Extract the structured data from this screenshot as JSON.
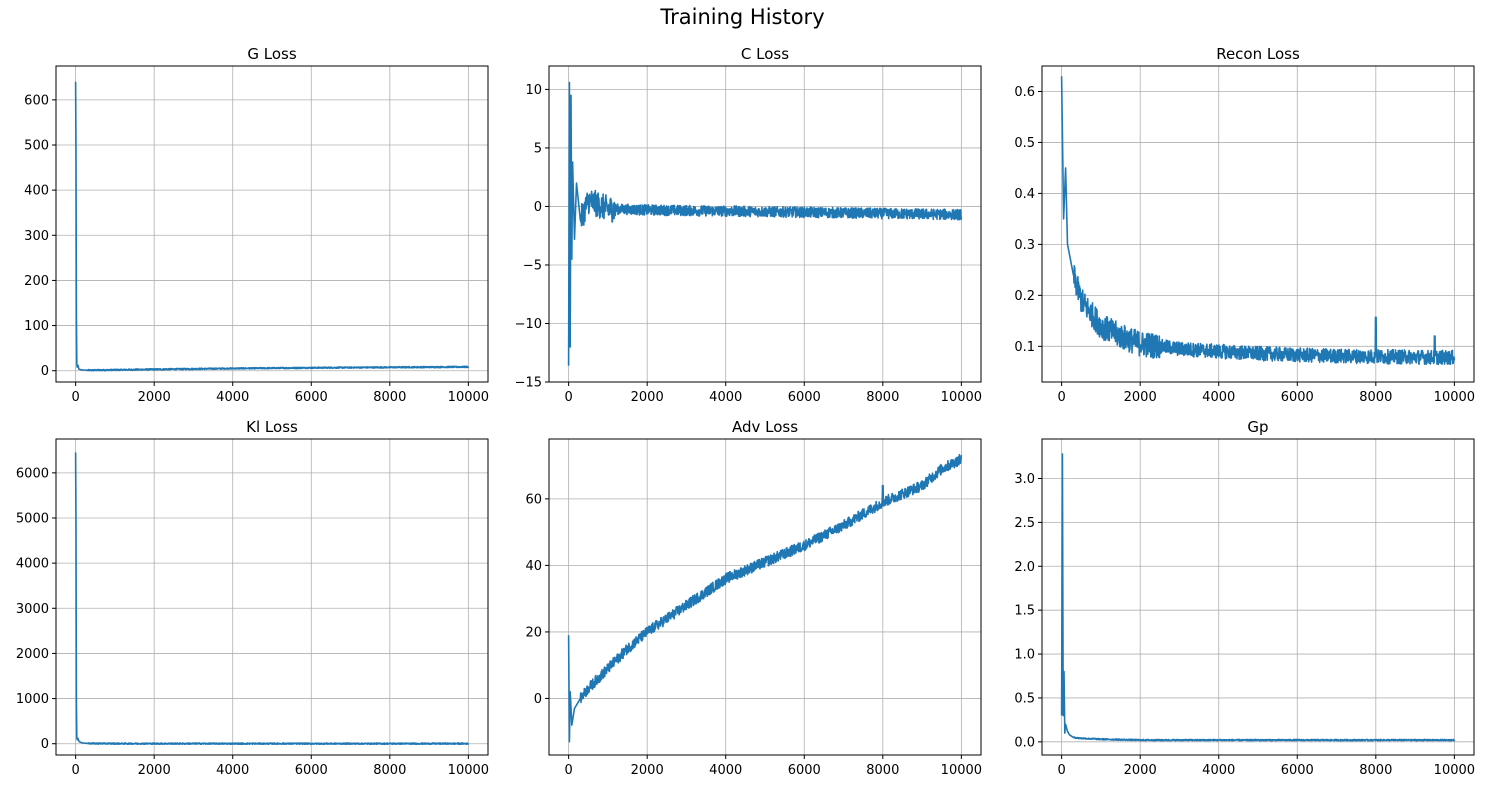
{
  "figure": {
    "title": "Training History",
    "line_color": "#1f77b4",
    "grid_color": "#b0b0b0"
  },
  "chart_data": [
    {
      "type": "line",
      "title": "G Loss",
      "xlim": [
        -500,
        10500
      ],
      "ylim": [
        -25,
        675
      ],
      "xticks": [
        0,
        2000,
        4000,
        6000,
        8000,
        10000
      ],
      "yticks": [
        0,
        100,
        200,
        300,
        400,
        500,
        600
      ],
      "ytick_labels": [
        "0",
        "100",
        "200",
        "300",
        "400",
        "500",
        "600"
      ],
      "grid": true,
      "shape": "spike_flat",
      "x": [
        0,
        10,
        20,
        30,
        40,
        60,
        80,
        100,
        150,
        200,
        300,
        500,
        1000,
        2000,
        4000,
        6000,
        8000,
        10000
      ],
      "y": [
        640,
        480,
        120,
        15,
        8,
        12,
        4,
        3,
        2,
        1.5,
        1.0,
        1.2,
        1.8,
        3.0,
        5.0,
        6.5,
        7.5,
        8.5
      ]
    },
    {
      "type": "line",
      "title": "C Loss",
      "xlim": [
        -500,
        10500
      ],
      "ylim": [
        -15,
        12
      ],
      "xticks": [
        0,
        2000,
        4000,
        6000,
        8000,
        10000
      ],
      "yticks": [
        -15,
        -10,
        -5,
        0,
        5,
        10
      ],
      "ytick_labels": [
        "−15",
        "−10",
        "−5",
        "0",
        "5",
        "10"
      ],
      "grid": true,
      "shape": "oscillate_decay",
      "x": [
        0,
        20,
        40,
        60,
        80,
        100,
        150,
        200,
        300,
        500,
        1000,
        2000,
        4000,
        6000,
        8000,
        10000
      ],
      "y": [
        -13.6,
        10.6,
        -12.0,
        9.5,
        -4.5,
        3.8,
        -2.8,
        2.0,
        -1.2,
        0.5,
        -0.2,
        -0.3,
        -0.4,
        -0.5,
        -0.6,
        -0.7
      ]
    },
    {
      "type": "line",
      "title": "Recon Loss",
      "xlim": [
        -500,
        10500
      ],
      "ylim": [
        0.03,
        0.65
      ],
      "xticks": [
        0,
        2000,
        4000,
        6000,
        8000,
        10000
      ],
      "yticks": [
        0.1,
        0.2,
        0.3,
        0.4,
        0.5,
        0.6
      ],
      "ytick_labels": [
        "0.1",
        "0.2",
        "0.3",
        "0.4",
        "0.5",
        "0.6"
      ],
      "grid": true,
      "shape": "decay_noise",
      "x": [
        0,
        50,
        100,
        150,
        200,
        300,
        500,
        800,
        1000,
        1500,
        2000,
        3000,
        4000,
        5000,
        6000,
        7000,
        8000,
        9000,
        10000
      ],
      "y": [
        0.63,
        0.35,
        0.45,
        0.3,
        0.28,
        0.24,
        0.19,
        0.16,
        0.14,
        0.12,
        0.105,
        0.095,
        0.09,
        0.086,
        0.083,
        0.081,
        0.08,
        0.079,
        0.078
      ]
    },
    {
      "type": "line",
      "title": "Kl Loss",
      "xlim": [
        -500,
        10500
      ],
      "ylim": [
        -250,
        6750
      ],
      "xticks": [
        0,
        2000,
        4000,
        6000,
        8000,
        10000
      ],
      "yticks": [
        0,
        1000,
        2000,
        3000,
        4000,
        5000,
        6000
      ],
      "ytick_labels": [
        "0",
        "1000",
        "2000",
        "3000",
        "4000",
        "5000",
        "6000"
      ],
      "grid": true,
      "shape": "spike_flat",
      "x": [
        0,
        10,
        20,
        30,
        40,
        60,
        80,
        100,
        150,
        200,
        300,
        500,
        1000,
        2000,
        4000,
        6000,
        8000,
        10000
      ],
      "y": [
        6450,
        4800,
        900,
        140,
        90,
        120,
        60,
        40,
        25,
        15,
        8,
        5,
        3,
        2,
        2,
        1.5,
        1.5,
        1.5
      ]
    },
    {
      "type": "line",
      "title": "Adv Loss",
      "xlim": [
        -500,
        10500
      ],
      "ylim": [
        -17,
        78
      ],
      "xticks": [
        0,
        2000,
        4000,
        6000,
        8000,
        10000
      ],
      "yticks": [
        0,
        20,
        40,
        60
      ],
      "ytick_labels": [
        "0",
        "20",
        "40",
        "60"
      ],
      "grid": true,
      "shape": "rising_noise",
      "x": [
        0,
        20,
        40,
        80,
        150,
        300,
        500,
        1000,
        1500,
        2000,
        3000,
        4000,
        5000,
        6000,
        7000,
        8000,
        9000,
        9500,
        10000
      ],
      "y": [
        19,
        -13,
        2,
        -8,
        -3,
        0,
        3,
        9,
        15,
        20,
        28,
        36,
        41,
        46,
        52,
        59,
        64,
        69,
        72
      ]
    },
    {
      "type": "line",
      "title": "Gp",
      "xlim": [
        -500,
        10500
      ],
      "ylim": [
        -0.15,
        3.45
      ],
      "xticks": [
        0,
        2000,
        4000,
        6000,
        8000,
        10000
      ],
      "yticks": [
        0.0,
        0.5,
        1.0,
        1.5,
        2.0,
        2.5,
        3.0
      ],
      "ytick_labels": [
        "0.0",
        "0.5",
        "1.0",
        "1.5",
        "2.0",
        "2.5",
        "3.0"
      ],
      "grid": true,
      "shape": "spike_flat",
      "x": [
        0,
        20,
        40,
        60,
        80,
        100,
        150,
        200,
        300,
        500,
        1000,
        2000,
        4000,
        6000,
        8000,
        10000
      ],
      "y": [
        0.3,
        3.28,
        0.3,
        0.8,
        0.1,
        0.2,
        0.12,
        0.08,
        0.05,
        0.04,
        0.03,
        0.02,
        0.02,
        0.02,
        0.02,
        0.02
      ]
    }
  ]
}
